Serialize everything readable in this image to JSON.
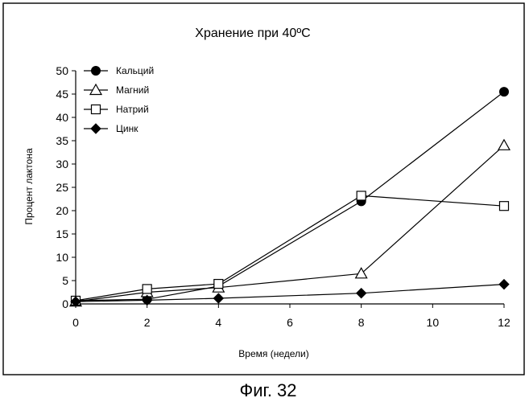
{
  "chart_data": {
    "type": "line",
    "title": "Хранение при 40ºC",
    "xlabel": "Время (недели)",
    "ylabel": "Процент лактона",
    "xlim": [
      0,
      12
    ],
    "ylim": [
      0,
      50
    ],
    "xticks": [
      0,
      2,
      4,
      6,
      8,
      10,
      12
    ],
    "yticks": [
      0,
      5,
      10,
      15,
      20,
      25,
      30,
      35,
      40,
      45,
      50
    ],
    "grid": false,
    "legend_position": "top-left",
    "series": [
      {
        "name": "Кальций",
        "marker": "circle-filled",
        "x": [
          0,
          2,
          4,
          8,
          12
        ],
        "y": [
          0.7,
          1.0,
          3.8,
          22.0,
          45.5
        ]
      },
      {
        "name": "Магний",
        "marker": "triangle-open",
        "x": [
          0,
          2,
          4,
          8,
          12
        ],
        "y": [
          0.5,
          2.5,
          3.5,
          6.5,
          34.0
        ]
      },
      {
        "name": "Натрий",
        "marker": "square-open",
        "x": [
          0,
          2,
          4,
          8,
          12
        ],
        "y": [
          0.7,
          3.2,
          4.3,
          23.2,
          21.0
        ]
      },
      {
        "name": "Цинк",
        "marker": "diamond-filled",
        "x": [
          0,
          2,
          4,
          8,
          12
        ],
        "y": [
          0.5,
          0.8,
          1.2,
          2.3,
          4.2
        ]
      }
    ]
  },
  "caption": "Фиг. 32"
}
